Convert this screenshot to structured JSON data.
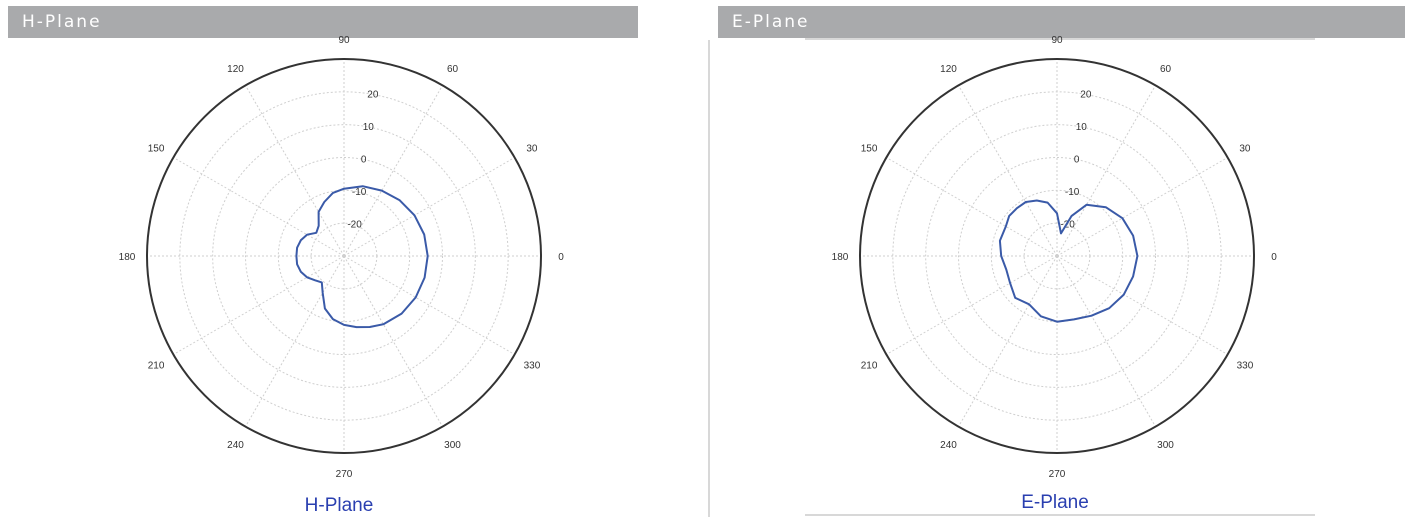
{
  "headers": {
    "left": "H-Plane",
    "right": "E-Plane"
  },
  "colors": {
    "header_bg": "#a9aaac",
    "trace": "#3a5aa8",
    "grid": "#cfcfcf",
    "outer_ring": "#333333",
    "caption": "#2a3fb0"
  },
  "chart_data": [
    {
      "type": "polar",
      "title": "H-Plane",
      "angle_unit": "deg",
      "angle_ticks": [
        0,
        30,
        60,
        90,
        120,
        150,
        180,
        210,
        240,
        270,
        300,
        330
      ],
      "angle_tick_labels": [
        "0",
        "30",
        "60",
        "90",
        "120",
        "150",
        "180",
        "210",
        "240",
        "270",
        "300",
        "330"
      ],
      "radial_ticks": [
        -20,
        -10,
        0,
        10,
        20
      ],
      "radial_tick_labels": [
        "-20",
        "-10",
        "0",
        "10",
        "20"
      ],
      "rlim": [
        -30,
        30
      ],
      "grid": true,
      "series": [
        {
          "angles": [
            0,
            15,
            30,
            45,
            60,
            75,
            90,
            100,
            110,
            120,
            130,
            140,
            150,
            160,
            170,
            180,
            190,
            200,
            210,
            220,
            230,
            240,
            250,
            260,
            270,
            280,
            290,
            300,
            315,
            330,
            345
          ],
          "values": [
            -4.5,
            -4.7,
            -5.2,
            -6,
            -7,
            -8,
            -9.5,
            -10.5,
            -12.5,
            -14.5,
            -18,
            -19,
            -17,
            -16,
            -15.5,
            -15.5,
            -15.5,
            -16,
            -17,
            -18.5,
            -19.5,
            -17,
            -13,
            -10.5,
            -9,
            -8,
            -7,
            -6,
            -5.2,
            -4.8,
            -4.6
          ]
        }
      ]
    },
    {
      "type": "polar",
      "title": "E-Plane",
      "angle_unit": "deg",
      "angle_ticks": [
        0,
        30,
        60,
        90,
        120,
        150,
        180,
        210,
        240,
        270,
        300,
        330
      ],
      "angle_tick_labels": [
        "0",
        "30",
        "60",
        "90",
        "120",
        "150",
        "180",
        "210",
        "240",
        "270",
        "300",
        "330"
      ],
      "radial_ticks": [
        -20,
        -10,
        0,
        10,
        20
      ],
      "radial_tick_labels": [
        "-20",
        "-10",
        "0",
        "10",
        "20"
      ],
      "rlim": [
        -30,
        30
      ],
      "grid": true,
      "series": [
        {
          "angles": [
            0,
            15,
            30,
            45,
            60,
            70,
            80,
            90,
            100,
            110,
            120,
            130,
            140,
            150,
            165,
            180,
            195,
            210,
            225,
            240,
            255,
            270,
            285,
            300,
            315,
            330,
            345
          ],
          "values": [
            -5.5,
            -6,
            -7,
            -9,
            -12,
            -17,
            -23,
            -17,
            -13.5,
            -12,
            -11,
            -11,
            -11,
            -12,
            -12,
            -13,
            -14,
            -13.5,
            -12,
            -13,
            -11,
            -10,
            -10,
            -9,
            -7.5,
            -6.5,
            -6
          ]
        }
      ]
    }
  ]
}
